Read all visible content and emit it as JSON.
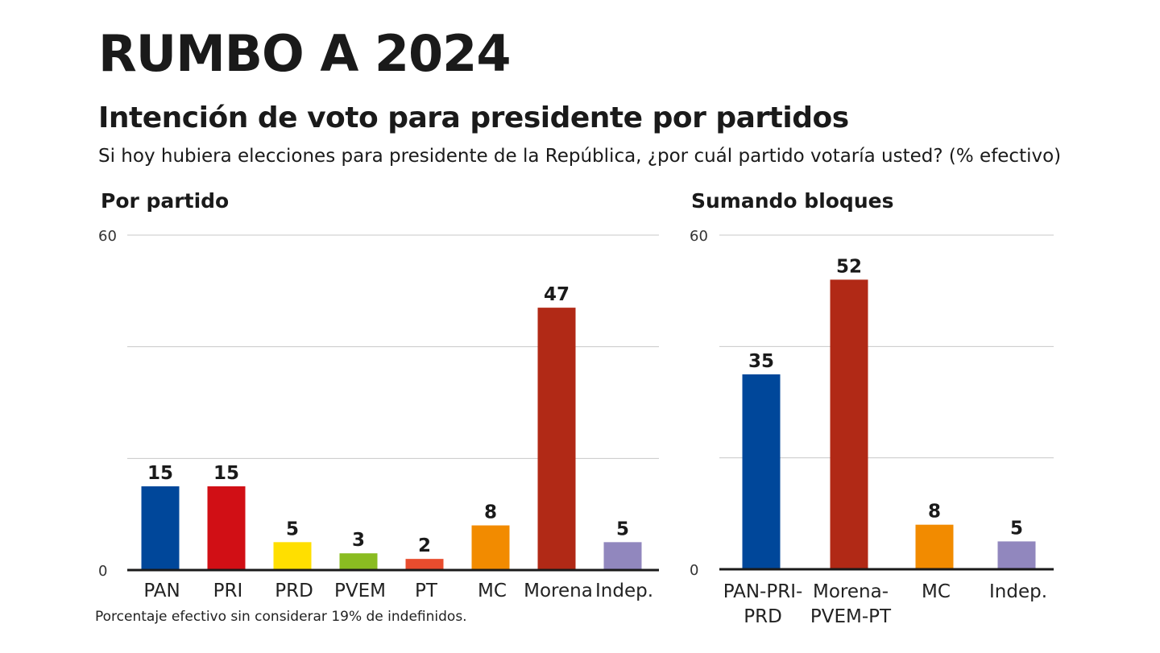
{
  "header": {
    "title": "RUMBO A 2024",
    "subtitle": "Intención de voto para presidente por partidos",
    "question": "Si hoy hubiera elecciones para presidente de la República, ¿por cuál partido votaría usted? (% efectivo)"
  },
  "footnote": "Porcentaje efectivo sin considerar 19% de indefinidos.",
  "chart_data": [
    {
      "type": "bar",
      "title": "Por partido",
      "categories": [
        [
          "PAN"
        ],
        [
          "PRI"
        ],
        [
          "PRD"
        ],
        [
          "PVEM"
        ],
        [
          "PT"
        ],
        [
          "MC"
        ],
        [
          "Morena"
        ],
        [
          "Indep."
        ]
      ],
      "values": [
        15,
        15,
        5,
        3,
        2,
        8,
        47,
        5
      ],
      "colors": [
        "#00479a",
        "#d10f15",
        "#ffdf00",
        "#8abc21",
        "#e84c2e",
        "#f28b00",
        "#b12916",
        "#9187be"
      ],
      "ylim": [
        0,
        60
      ],
      "yticks": [
        0,
        60
      ],
      "grid": true,
      "legend": "none"
    },
    {
      "type": "bar",
      "title": "Sumando bloques",
      "categories": [
        [
          "PAN-PRI-",
          "PRD"
        ],
        [
          "Morena-",
          "PVEM-PT"
        ],
        [
          "MC"
        ],
        [
          "Indep."
        ]
      ],
      "values": [
        35,
        52,
        8,
        5
      ],
      "colors": [
        "#00479a",
        "#b12916",
        "#f28b00",
        "#9187be"
      ],
      "ylim": [
        0,
        60
      ],
      "yticks": [
        0,
        60
      ],
      "grid": true,
      "legend": "none"
    }
  ]
}
